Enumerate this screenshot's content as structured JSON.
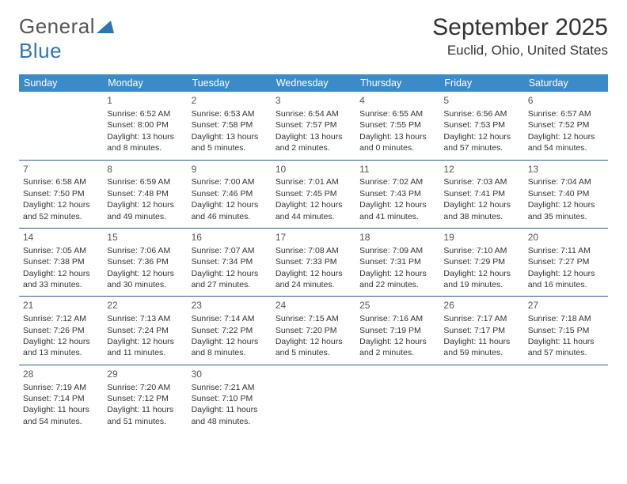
{
  "logo": {
    "word1": "General",
    "word2": "Blue"
  },
  "title": "September 2025",
  "location": "Euclid, Ohio, United States",
  "weekdays": [
    "Sunday",
    "Monday",
    "Tuesday",
    "Wednesday",
    "Thursday",
    "Friday",
    "Saturday"
  ],
  "header_bg": "#3b8bc9",
  "header_text": "#ffffff",
  "rule_color": "#2f5f8a",
  "weeks": [
    [
      null,
      {
        "d": "1",
        "sr": "Sunrise: 6:52 AM",
        "ss": "Sunset: 8:00 PM",
        "dl": "Daylight: 13 hours and 8 minutes."
      },
      {
        "d": "2",
        "sr": "Sunrise: 6:53 AM",
        "ss": "Sunset: 7:58 PM",
        "dl": "Daylight: 13 hours and 5 minutes."
      },
      {
        "d": "3",
        "sr": "Sunrise: 6:54 AM",
        "ss": "Sunset: 7:57 PM",
        "dl": "Daylight: 13 hours and 2 minutes."
      },
      {
        "d": "4",
        "sr": "Sunrise: 6:55 AM",
        "ss": "Sunset: 7:55 PM",
        "dl": "Daylight: 13 hours and 0 minutes."
      },
      {
        "d": "5",
        "sr": "Sunrise: 6:56 AM",
        "ss": "Sunset: 7:53 PM",
        "dl": "Daylight: 12 hours and 57 minutes."
      },
      {
        "d": "6",
        "sr": "Sunrise: 6:57 AM",
        "ss": "Sunset: 7:52 PM",
        "dl": "Daylight: 12 hours and 54 minutes."
      }
    ],
    [
      {
        "d": "7",
        "sr": "Sunrise: 6:58 AM",
        "ss": "Sunset: 7:50 PM",
        "dl": "Daylight: 12 hours and 52 minutes."
      },
      {
        "d": "8",
        "sr": "Sunrise: 6:59 AM",
        "ss": "Sunset: 7:48 PM",
        "dl": "Daylight: 12 hours and 49 minutes."
      },
      {
        "d": "9",
        "sr": "Sunrise: 7:00 AM",
        "ss": "Sunset: 7:46 PM",
        "dl": "Daylight: 12 hours and 46 minutes."
      },
      {
        "d": "10",
        "sr": "Sunrise: 7:01 AM",
        "ss": "Sunset: 7:45 PM",
        "dl": "Daylight: 12 hours and 44 minutes."
      },
      {
        "d": "11",
        "sr": "Sunrise: 7:02 AM",
        "ss": "Sunset: 7:43 PM",
        "dl": "Daylight: 12 hours and 41 minutes."
      },
      {
        "d": "12",
        "sr": "Sunrise: 7:03 AM",
        "ss": "Sunset: 7:41 PM",
        "dl": "Daylight: 12 hours and 38 minutes."
      },
      {
        "d": "13",
        "sr": "Sunrise: 7:04 AM",
        "ss": "Sunset: 7:40 PM",
        "dl": "Daylight: 12 hours and 35 minutes."
      }
    ],
    [
      {
        "d": "14",
        "sr": "Sunrise: 7:05 AM",
        "ss": "Sunset: 7:38 PM",
        "dl": "Daylight: 12 hours and 33 minutes."
      },
      {
        "d": "15",
        "sr": "Sunrise: 7:06 AM",
        "ss": "Sunset: 7:36 PM",
        "dl": "Daylight: 12 hours and 30 minutes."
      },
      {
        "d": "16",
        "sr": "Sunrise: 7:07 AM",
        "ss": "Sunset: 7:34 PM",
        "dl": "Daylight: 12 hours and 27 minutes."
      },
      {
        "d": "17",
        "sr": "Sunrise: 7:08 AM",
        "ss": "Sunset: 7:33 PM",
        "dl": "Daylight: 12 hours and 24 minutes."
      },
      {
        "d": "18",
        "sr": "Sunrise: 7:09 AM",
        "ss": "Sunset: 7:31 PM",
        "dl": "Daylight: 12 hours and 22 minutes."
      },
      {
        "d": "19",
        "sr": "Sunrise: 7:10 AM",
        "ss": "Sunset: 7:29 PM",
        "dl": "Daylight: 12 hours and 19 minutes."
      },
      {
        "d": "20",
        "sr": "Sunrise: 7:11 AM",
        "ss": "Sunset: 7:27 PM",
        "dl": "Daylight: 12 hours and 16 minutes."
      }
    ],
    [
      {
        "d": "21",
        "sr": "Sunrise: 7:12 AM",
        "ss": "Sunset: 7:26 PM",
        "dl": "Daylight: 12 hours and 13 minutes."
      },
      {
        "d": "22",
        "sr": "Sunrise: 7:13 AM",
        "ss": "Sunset: 7:24 PM",
        "dl": "Daylight: 12 hours and 11 minutes."
      },
      {
        "d": "23",
        "sr": "Sunrise: 7:14 AM",
        "ss": "Sunset: 7:22 PM",
        "dl": "Daylight: 12 hours and 8 minutes."
      },
      {
        "d": "24",
        "sr": "Sunrise: 7:15 AM",
        "ss": "Sunset: 7:20 PM",
        "dl": "Daylight: 12 hours and 5 minutes."
      },
      {
        "d": "25",
        "sr": "Sunrise: 7:16 AM",
        "ss": "Sunset: 7:19 PM",
        "dl": "Daylight: 12 hours and 2 minutes."
      },
      {
        "d": "26",
        "sr": "Sunrise: 7:17 AM",
        "ss": "Sunset: 7:17 PM",
        "dl": "Daylight: 11 hours and 59 minutes."
      },
      {
        "d": "27",
        "sr": "Sunrise: 7:18 AM",
        "ss": "Sunset: 7:15 PM",
        "dl": "Daylight: 11 hours and 57 minutes."
      }
    ],
    [
      {
        "d": "28",
        "sr": "Sunrise: 7:19 AM",
        "ss": "Sunset: 7:14 PM",
        "dl": "Daylight: 11 hours and 54 minutes."
      },
      {
        "d": "29",
        "sr": "Sunrise: 7:20 AM",
        "ss": "Sunset: 7:12 PM",
        "dl": "Daylight: 11 hours and 51 minutes."
      },
      {
        "d": "30",
        "sr": "Sunrise: 7:21 AM",
        "ss": "Sunset: 7:10 PM",
        "dl": "Daylight: 11 hours and 48 minutes."
      },
      null,
      null,
      null,
      null
    ]
  ]
}
